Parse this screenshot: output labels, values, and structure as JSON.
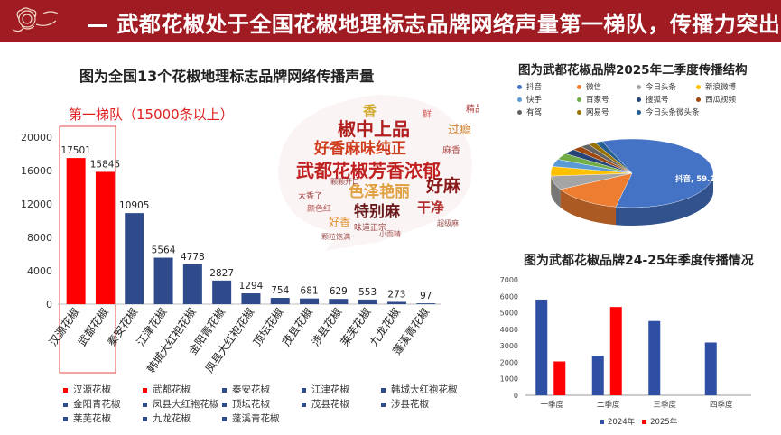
{
  "header": {
    "title": "— 武都花椒处于全国花椒地理标志品牌网络声量第一梯队，传播力突出"
  },
  "colors": {
    "banner": "#a01c22",
    "red": "#ff0000",
    "navy": "#2f4b8c",
    "blue2024": "#2e4fa3"
  },
  "tier_label": "第一梯队（15000条以上）",
  "wordcloud": {
    "words": [
      "椒中上品",
      "好香麻味纯正",
      "武都花椒芳香浓郁",
      "色泽艳丽",
      "好麻",
      "特别麻",
      "干净",
      "过瘾",
      "香",
      "精品",
      "太香了",
      "颗颗开口",
      "味道正宗",
      "好香",
      "颜色红",
      "鲜",
      "麻香",
      "颗粒饱满",
      "小而精",
      "超级麻"
    ]
  },
  "chart_data": [
    {
      "type": "bar",
      "title": "图为全国13个花椒地理标志品牌网络传播声量",
      "categories": [
        "汉源花椒",
        "武都花椒",
        "秦安花椒",
        "江津花椒",
        "韩城大红袍花椒",
        "金阳青花椒",
        "凤县大红袍花椒",
        "顶坛花椒",
        "茂县花椒",
        "涉县花椒",
        "莱芜花椒",
        "九龙花椒",
        "蓬溪青花椒"
      ],
      "values": [
        17501,
        15845,
        10905,
        5564,
        4778,
        2827,
        1294,
        754,
        681,
        629,
        553,
        273,
        97
      ],
      "bar_colors": [
        "#ff0000",
        "#ff0000",
        "#2f4b8c",
        "#2f4b8c",
        "#2f4b8c",
        "#2f4b8c",
        "#2f4b8c",
        "#2f4b8c",
        "#2f4b8c",
        "#2f4b8c",
        "#2f4b8c",
        "#2f4b8c",
        "#2f4b8c"
      ],
      "yticks": [
        0,
        4000,
        8000,
        12000,
        16000,
        20000
      ],
      "ylim": [
        0,
        20000
      ],
      "legend": [
        {
          "name": "汉源花椒",
          "color": "#ff0000"
        },
        {
          "name": "武都花椒",
          "color": "#ff0000"
        },
        {
          "name": "秦安花椒",
          "color": "#2f4b8c"
        },
        {
          "name": "江津花椒",
          "color": "#2f4b8c"
        },
        {
          "name": "韩城大红袍花椒",
          "color": "#2f4b8c"
        },
        {
          "name": "金阳青花椒",
          "color": "#2f4b8c"
        },
        {
          "name": "凤县大红袍花椒",
          "color": "#2f4b8c"
        },
        {
          "name": "顶坛花椒",
          "color": "#2f4b8c"
        },
        {
          "name": "茂县花椒",
          "color": "#2f4b8c"
        },
        {
          "name": "涉县花椒",
          "color": "#2f4b8c"
        },
        {
          "name": "莱芜花椒",
          "color": "#2f4b8c"
        },
        {
          "name": "九龙花椒",
          "color": "#2f4b8c"
        },
        {
          "name": "蓬溪青花椒",
          "color": "#2f4b8c"
        }
      ]
    },
    {
      "type": "pie",
      "title": "图为武都花椒品牌2025年二季度传播结构",
      "labels": [
        "抖音",
        "微信",
        "今日头条",
        "新浪微博",
        "快手",
        "百家号",
        "搜狐号",
        "西瓜视频",
        "有驾",
        "网易号",
        "今日头条微头条"
      ],
      "values": [
        59.2,
        14.0,
        6.5,
        4.5,
        3.5,
        3.0,
        2.5,
        2.0,
        1.8,
        1.5,
        1.5
      ],
      "colors": [
        "#4472c4",
        "#ed7d31",
        "#a5a5a5",
        "#ffc000",
        "#5b9bd5",
        "#70ad47",
        "#264478",
        "#9e480e",
        "#636363",
        "#997300",
        "#255e91"
      ],
      "data_label": "抖音, 59.2"
    },
    {
      "type": "bar",
      "title": "图为武都花椒品牌24-25年季度传播情况",
      "categories": [
        "一季度",
        "二季度",
        "三季度",
        "四季度"
      ],
      "series": [
        {
          "name": "2024年",
          "color": "#2e4fa3",
          "values": [
            5800,
            2400,
            4500,
            3200
          ]
        },
        {
          "name": "2025年",
          "color": "#ff0000",
          "values": [
            2050,
            5350,
            null,
            null
          ]
        }
      ],
      "yticks": [
        0,
        1000,
        2000,
        3000,
        4000,
        5000,
        6000,
        7000
      ],
      "ylim": [
        0,
        7000
      ]
    }
  ]
}
